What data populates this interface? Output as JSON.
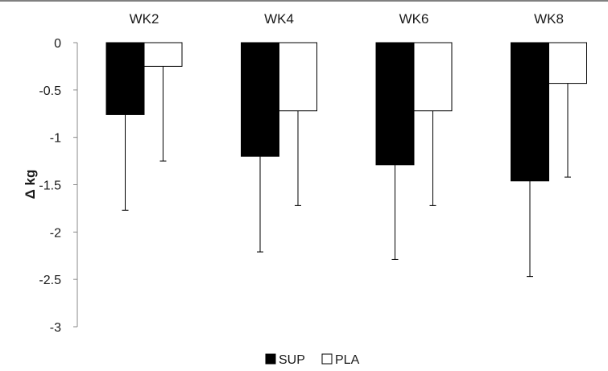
{
  "chart_data": {
    "type": "bar",
    "categories": [
      "WK2",
      "WK4",
      "WK6",
      "WK8"
    ],
    "series": [
      {
        "name": "SUP",
        "values": [
          -0.76,
          -1.2,
          -1.29,
          -1.46
        ],
        "errors": [
          1.01,
          1.01,
          1.0,
          1.01
        ],
        "color": "#000000"
      },
      {
        "name": "PLA",
        "values": [
          -0.25,
          -0.72,
          -0.72,
          -0.43
        ],
        "errors": [
          1.0,
          1.0,
          1.0,
          0.99
        ],
        "color": "#ffffff"
      }
    ],
    "title": "",
    "xlabel": "",
    "ylabel": "Δ kg",
    "ylim": [
      -3,
      0
    ],
    "yticks": [
      "0",
      "-0.5",
      "-1",
      "-1.5",
      "-2",
      "-2.5",
      "-3"
    ],
    "ytick_values": [
      0,
      -0.5,
      -1,
      -1.5,
      -2,
      -2.5,
      -3
    ],
    "grid": false,
    "legend_position": "bottom",
    "category_label_position": "top",
    "error_bar_direction": "down"
  }
}
